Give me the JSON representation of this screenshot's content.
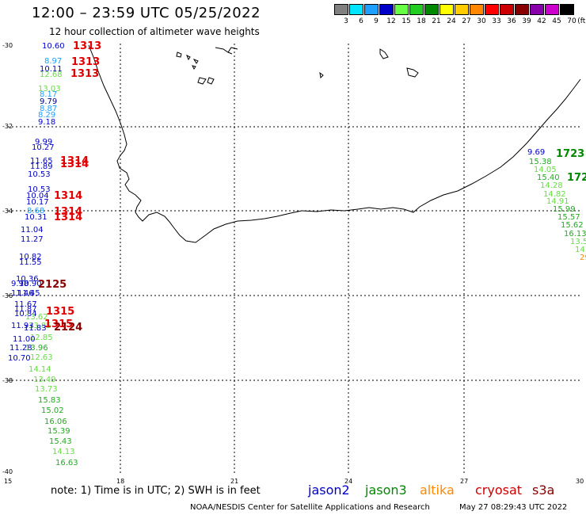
{
  "header": {
    "title": "12:00 – 23:59 UTC 05/25/2022",
    "subtitle": "12 hour collection of altimeter wave heights"
  },
  "color_scale": {
    "unit": "(ft)",
    "bins": [
      {
        "label": "3",
        "color": "#808080"
      },
      {
        "label": "6",
        "color": "#00e5ff"
      },
      {
        "label": "9",
        "color": "#1ea0ff"
      },
      {
        "label": "12",
        "color": "#0000c8"
      },
      {
        "label": "15",
        "color": "#66ff44"
      },
      {
        "label": "18",
        "color": "#22cc22"
      },
      {
        "label": "21",
        "color": "#008800"
      },
      {
        "label": "24",
        "color": "#ffff00"
      },
      {
        "label": "27",
        "color": "#ffcc00"
      },
      {
        "label": "30",
        "color": "#ff8800"
      },
      {
        "label": "33",
        "color": "#ff0000"
      },
      {
        "label": "36",
        "color": "#cc0000"
      },
      {
        "label": "39",
        "color": "#880000"
      },
      {
        "label": "42",
        "color": "#8800aa"
      },
      {
        "label": "45",
        "color": "#cc00cc"
      },
      {
        "label": "70",
        "color": "#000000"
      }
    ]
  },
  "axes": {
    "lat_ticks": [
      "-30",
      "-32",
      "-34",
      "-36",
      "-38",
      "-40"
    ],
    "lon_ticks": [
      "15",
      "18",
      "21",
      "24",
      "27",
      "30"
    ]
  },
  "observations": [
    {
      "text": "10.60",
      "color": "#0000c8"
    },
    {
      "text": "8.97",
      "color": "#1ea0ff"
    },
    {
      "text": "10.11",
      "color": "#0000c8"
    },
    {
      "text": "12.68",
      "color": "#66dd44"
    },
    {
      "text": "13.03",
      "color": "#66dd44"
    },
    {
      "text": "8.17",
      "color": "#1ea0ff"
    },
    {
      "text": "9.79",
      "color": "#000080"
    },
    {
      "text": "8.87",
      "color": "#1ea0ff"
    },
    {
      "text": "8.29",
      "color": "#1ea0ff"
    },
    {
      "text": "9.18",
      "color": "#0000c8"
    },
    {
      "text": "9.99",
      "color": "#0000c8"
    },
    {
      "text": "10.27",
      "color": "#0000c8"
    },
    {
      "text": "11.65",
      "color": "#0000c8"
    },
    {
      "text": "11.89",
      "color": "#0000c8"
    },
    {
      "text": "10.53",
      "color": "#0000c8"
    },
    {
      "text": "10.53",
      "color": "#0000c8"
    },
    {
      "text": "10.04",
      "color": "#0000c8"
    },
    {
      "text": "10.17",
      "color": "#0000c8"
    },
    {
      "text": "8.68",
      "color": "#1ea0ff"
    },
    {
      "text": "10.31",
      "color": "#0000c8"
    },
    {
      "text": "11.04",
      "color": "#0000c8"
    },
    {
      "text": "11.27",
      "color": "#0000c8"
    },
    {
      "text": "10.82",
      "color": "#0000c8"
    },
    {
      "text": "11.55",
      "color": "#0000c8"
    },
    {
      "text": "10.36",
      "color": "#0000c8"
    },
    {
      "text": "9.98",
      "color": "#0000c8"
    },
    {
      "text": "10.90",
      "color": "#0000c8"
    },
    {
      "text": "11.46",
      "color": "#0000c8"
    },
    {
      "text": "11.45",
      "color": "#0000c8"
    },
    {
      "text": "11.67",
      "color": "#0000c8"
    },
    {
      "text": "11.87",
      "color": "#0000c8"
    },
    {
      "text": "10.84",
      "color": "#0000c8"
    },
    {
      "text": "13.62",
      "color": "#66dd44"
    },
    {
      "text": "11.93",
      "color": "#0000c8"
    },
    {
      "text": "13.85",
      "color": "#66dd44"
    },
    {
      "text": "11.83",
      "color": "#0000c8"
    },
    {
      "text": "12.85",
      "color": "#66dd44"
    },
    {
      "text": "11.00",
      "color": "#0000c8"
    },
    {
      "text": "11.28",
      "color": "#0000c8"
    },
    {
      "text": "13.96",
      "color": "#22aa22"
    },
    {
      "text": "10.70",
      "color": "#0000c8"
    },
    {
      "text": "12.63",
      "color": "#66dd44"
    },
    {
      "text": "14.14",
      "color": "#66dd44"
    },
    {
      "text": "13.49",
      "color": "#66dd44"
    },
    {
      "text": "13.73",
      "color": "#66dd44"
    },
    {
      "text": "15.83",
      "color": "#22aa22"
    },
    {
      "text": "15.02",
      "color": "#22aa22"
    },
    {
      "text": "16.06",
      "color": "#22aa22"
    },
    {
      "text": "15.39",
      "color": "#22aa22"
    },
    {
      "text": "15.43",
      "color": "#22aa22"
    },
    {
      "text": "14.13",
      "color": "#66dd44"
    },
    {
      "text": "16.63",
      "color": "#22aa22"
    },
    {
      "text": "9.69",
      "color": "#0000c8"
    },
    {
      "text": "15.38",
      "color": "#22aa22"
    },
    {
      "text": "14.05",
      "color": "#66dd44"
    },
    {
      "text": "15.40",
      "color": "#22aa22"
    },
    {
      "text": "14.28",
      "color": "#66dd44"
    },
    {
      "text": "14.82",
      "color": "#66dd44"
    },
    {
      "text": "14.91",
      "color": "#66dd44"
    },
    {
      "text": "15.99",
      "color": "#22aa22"
    },
    {
      "text": "15.57",
      "color": "#22aa22"
    },
    {
      "text": "15.62",
      "color": "#22aa22"
    },
    {
      "text": "16.13",
      "color": "#22aa22"
    },
    {
      "text": "13.5",
      "color": "#66dd44"
    },
    {
      "text": "14.",
      "color": "#66dd44"
    },
    {
      "text": "29",
      "color": "#ff8800"
    }
  ],
  "time_tags": [
    {
      "text": "1313",
      "color": "#e00000"
    },
    {
      "text": "1313",
      "color": "#e00000"
    },
    {
      "text": "1313",
      "color": "#e00000"
    },
    {
      "text": "1314",
      "color": "#e00000"
    },
    {
      "text": "1314",
      "color": "#e00000"
    },
    {
      "text": "1314",
      "color": "#e00000"
    },
    {
      "text": "1314",
      "color": "#e00000"
    },
    {
      "text": "1314",
      "color": "#e00000"
    },
    {
      "text": "2125",
      "color": "#880000"
    },
    {
      "text": "1315",
      "color": "#e00000"
    },
    {
      "text": "1315",
      "color": "#e00000"
    },
    {
      "text": "2124",
      "color": "#880000"
    },
    {
      "text": "1723",
      "color": "#008800"
    },
    {
      "text": "172",
      "color": "#008800"
    }
  ],
  "footer": {
    "note": "note:  1) Time is in UTC;  2) SWH is in feet",
    "legend": [
      {
        "name": "jason2",
        "color": "#0000c8"
      },
      {
        "name": "jason3",
        "color": "#008800"
      },
      {
        "name": "altika",
        "color": "#ff8800"
      },
      {
        "name": "cryosat",
        "color": "#cc0000"
      },
      {
        "name": "s3a",
        "color": "#880000"
      }
    ],
    "credit": "NOAA/NESDIS Center for Satellite Applications and Research",
    "timestamp": "May 27 08:29:43 UTC 2022"
  }
}
